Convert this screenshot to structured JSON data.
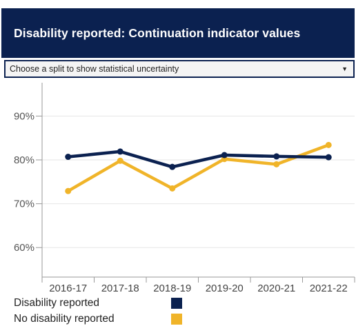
{
  "header": {
    "title": "Disability reported: Continuation indicator values"
  },
  "uncertainty_select": {
    "selected": "Choose a split to show statistical uncertainty",
    "arrow_icon": "triangle-down-icon"
  },
  "colors": {
    "header_bg": "#0b2150",
    "series_1": "#0b2150",
    "series_2": "#f0b429",
    "grid": "#e6e6e6"
  },
  "chart_data": {
    "type": "line",
    "title": "",
    "xlabel": "",
    "ylabel": "",
    "categories": [
      "2016-17",
      "2017-18",
      "2018-19",
      "2019-20",
      "2020-21",
      "2021-22"
    ],
    "y_ticks": [
      "60%",
      "70%",
      "80%",
      "90%"
    ],
    "ylim": [
      54,
      95
    ],
    "grid": true,
    "legend_position": "bottom-left",
    "series": [
      {
        "name": "Disability reported",
        "color": "#0b2150",
        "values": [
          80.7,
          81.9,
          78.4,
          81.1,
          80.8,
          80.6
        ]
      },
      {
        "name": "No disability reported",
        "color": "#f0b429",
        "values": [
          72.9,
          79.8,
          73.5,
          80.2,
          79.0,
          83.4
        ]
      }
    ]
  }
}
